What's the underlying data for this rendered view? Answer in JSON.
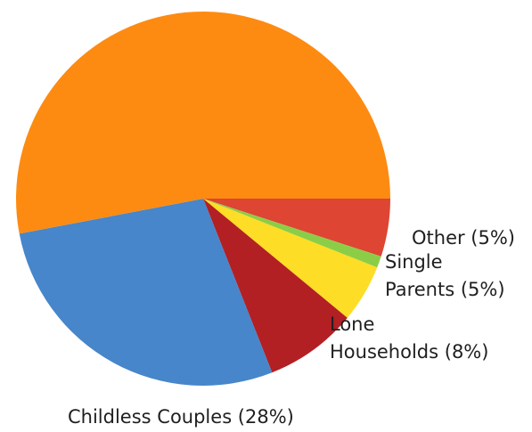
{
  "chart_data": {
    "type": "pie",
    "start_angle_deg": 0,
    "direction": "clockwise",
    "slices": [
      {
        "label": "Other (5%)",
        "label_lines": [
          "Other (5%)"
        ],
        "value": 5,
        "color": "#de4532"
      },
      {
        "label": "",
        "label_lines": [],
        "value": 1,
        "color": "#8ccd48"
      },
      {
        "label": "Single Parents (5%)",
        "label_lines": [
          "Single",
          "Parents (5%)"
        ],
        "value": 5,
        "color": "#fddd25"
      },
      {
        "label": "Lone Households (8%)",
        "label_lines": [
          "Lone",
          "Households (8%)"
        ],
        "value": 8,
        "color": "#b22024"
      },
      {
        "label": "Childless Couples (28%)",
        "label_lines": [
          "Childless Couples (28%)"
        ],
        "value": 28,
        "color": "#4786ca"
      },
      {
        "label": "",
        "label_lines": [],
        "value": 53,
        "color": "#fd8b12"
      }
    ]
  }
}
